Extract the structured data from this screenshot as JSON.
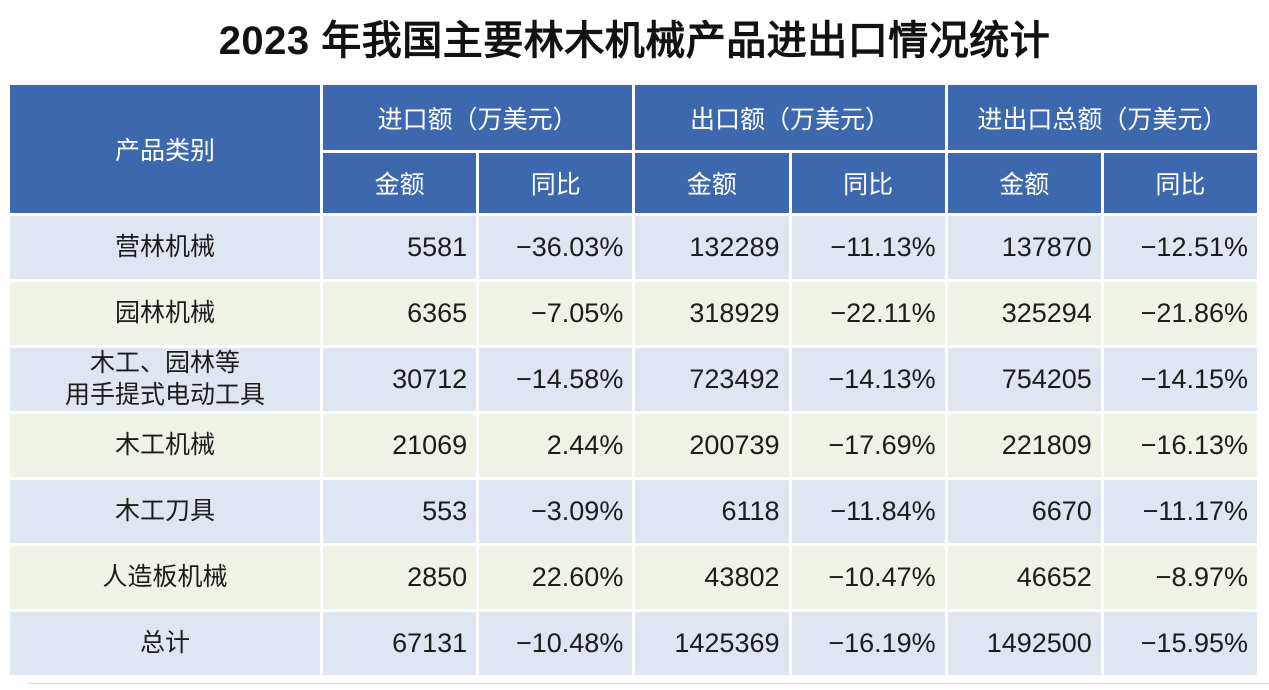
{
  "title": "2023 年我国主要林木机械产品进出口情况统计",
  "colors": {
    "header_bg": "#3d68ae",
    "header_text": "#ffffff",
    "row_lavender": "#dfe5f1",
    "row_green": "#eef2e7",
    "body_text": "#1c1c1c",
    "gap": "#ffffff"
  },
  "chart_data": {
    "type": "table",
    "title": "2023 年我国主要林木机械产品进出口情况统计",
    "category_header": "产品类别",
    "groups": [
      "进口额（万美元）",
      "出口额（万美元）",
      "进出口总额（万美元）"
    ],
    "subheaders": [
      "金额",
      "同比"
    ],
    "unit": "万美元",
    "rows": [
      {
        "category": "营林机械",
        "import_amount": 5581,
        "import_yoy": "−36.03%",
        "export_amount": 132289,
        "export_yoy": "−11.13%",
        "total_amount": 137870,
        "total_yoy": "−12.51%"
      },
      {
        "category": "园林机械",
        "import_amount": 6365,
        "import_yoy": "−7.05%",
        "export_amount": 318929,
        "export_yoy": "−22.11%",
        "total_amount": 325294,
        "total_yoy": "−21.86%"
      },
      {
        "category": "木工、园林等\n用手提式电动工具",
        "import_amount": 30712,
        "import_yoy": "−14.58%",
        "export_amount": 723492,
        "export_yoy": "−14.13%",
        "total_amount": 754205,
        "total_yoy": "−14.15%"
      },
      {
        "category": "木工机械",
        "import_amount": 21069,
        "import_yoy": "2.44%",
        "export_amount": 200739,
        "export_yoy": "−17.69%",
        "total_amount": 221809,
        "total_yoy": "−16.13%"
      },
      {
        "category": "木工刀具",
        "import_amount": 553,
        "import_yoy": "−3.09%",
        "export_amount": 6118,
        "export_yoy": "−11.84%",
        "total_amount": 6670,
        "total_yoy": "−11.17%"
      },
      {
        "category": "人造板机械",
        "import_amount": 2850,
        "import_yoy": "22.60%",
        "export_amount": 43802,
        "export_yoy": "−10.47%",
        "total_amount": 46652,
        "total_yoy": "−8.97%"
      },
      {
        "category": "总计",
        "import_amount": 67131,
        "import_yoy": "−10.48%",
        "export_amount": 1425369,
        "export_yoy": "−16.19%",
        "total_amount": 1492500,
        "total_yoy": "−15.95%"
      }
    ]
  }
}
